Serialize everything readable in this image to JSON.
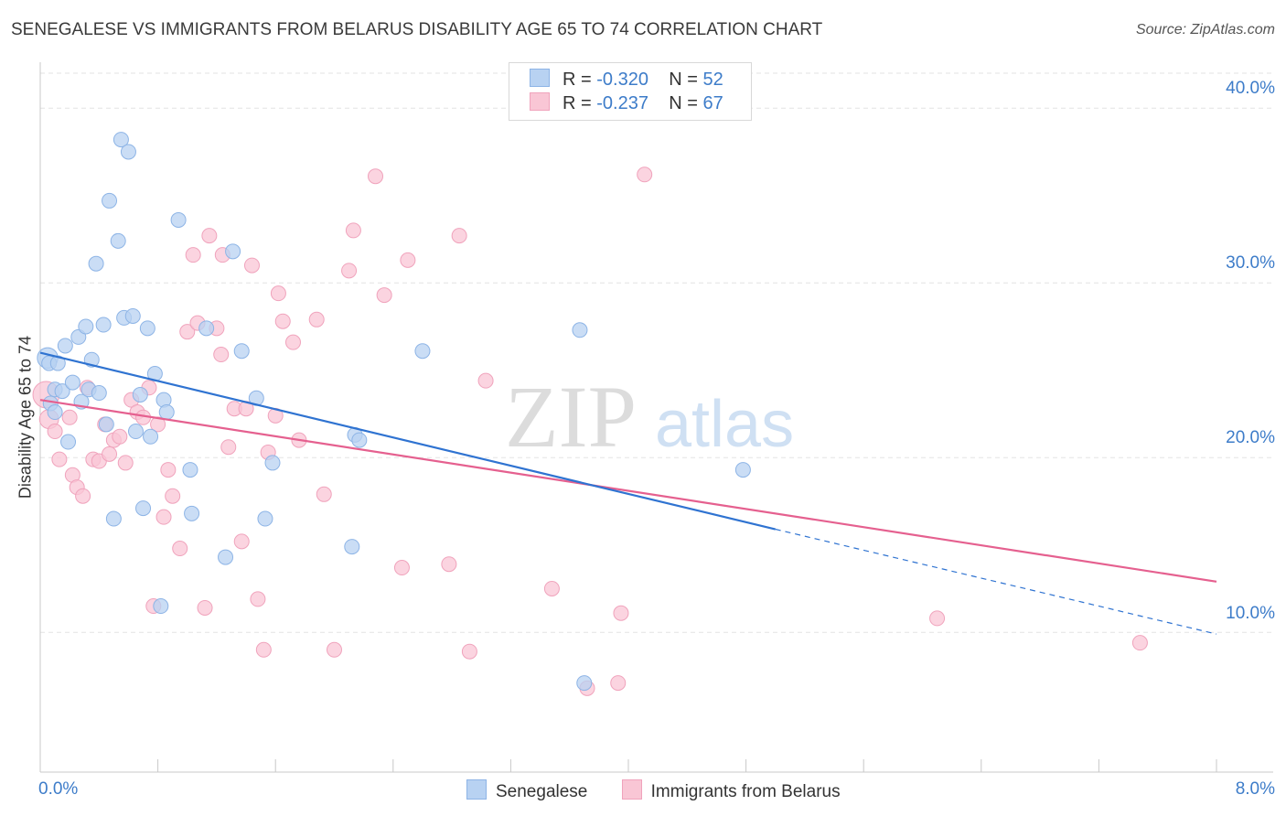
{
  "title": "SENEGALESE VS IMMIGRANTS FROM BELARUS DISABILITY AGE 65 TO 74 CORRELATION CHART",
  "source": "Source: ZipAtlas.com",
  "watermark": {
    "zip": "ZIP",
    "atlas": "atlas"
  },
  "colors": {
    "blue_fill": "#b8d2f2",
    "blue_stroke": "#8db4e6",
    "blue_line": "#2f73d1",
    "pink_fill": "#f9c6d5",
    "pink_stroke": "#f0a3bc",
    "pink_line": "#e5608f",
    "tick_text": "#3d7cc9",
    "grid": "#e3e3e3"
  },
  "stats": [
    {
      "r_label": "R =",
      "r_value": "-0.320",
      "n_label": "N =",
      "n_value": "52"
    },
    {
      "r_label": "R =",
      "r_value": "-0.237",
      "n_label": "N =",
      "n_value": "67"
    }
  ],
  "legend": [
    {
      "label": "Senegalese"
    },
    {
      "label": "Immigrants from Belarus"
    }
  ],
  "chart_data": {
    "type": "scatter",
    "title": "SENEGALESE VS IMMIGRANTS FROM BELARUS DISABILITY AGE 65 TO 74 CORRELATION CHART",
    "xlabel": "",
    "ylabel": "Disability Age 65 to 74",
    "xlim": [
      0,
      8
    ],
    "ylim": [
      2,
      42
    ],
    "x_tick_labels": [
      "0.0%",
      "8.0%"
    ],
    "y_ticks": [
      10,
      20,
      30,
      40
    ],
    "y_tick_labels": [
      "10.0%",
      "20.0%",
      "30.0%",
      "40.0%"
    ],
    "grid": true,
    "series": [
      {
        "name": "Senegalese",
        "color": "blue",
        "trend": {
          "x0": 0.0,
          "y0": 26.0,
          "x1": 5.0,
          "y1": 15.9,
          "dashed_to_x": 8.0,
          "dashed_to_y": 9.9
        },
        "points": [
          [
            0.05,
            25.7,
            1.4
          ],
          [
            0.06,
            25.4,
            1.0
          ],
          [
            0.07,
            23.1,
            1.0
          ],
          [
            0.1,
            22.6,
            1.0
          ],
          [
            0.1,
            23.9,
            1.0
          ],
          [
            0.12,
            25.4,
            1.0
          ],
          [
            0.15,
            23.8,
            1.0
          ],
          [
            0.17,
            26.4,
            1.0
          ],
          [
            0.19,
            20.9,
            1.0
          ],
          [
            0.22,
            24.3,
            1.0
          ],
          [
            0.26,
            26.9,
            1.0
          ],
          [
            0.28,
            23.2,
            1.0
          ],
          [
            0.31,
            27.5,
            1.0
          ],
          [
            0.33,
            23.9,
            1.0
          ],
          [
            0.35,
            25.6,
            1.0
          ],
          [
            0.38,
            31.1,
            1.0
          ],
          [
            0.4,
            23.7,
            1.0
          ],
          [
            0.43,
            27.6,
            1.0
          ],
          [
            0.45,
            21.9,
            1.0
          ],
          [
            0.47,
            34.7,
            1.0
          ],
          [
            0.5,
            16.5,
            1.0
          ],
          [
            0.53,
            32.4,
            1.0
          ],
          [
            0.55,
            38.2,
            1.0
          ],
          [
            0.57,
            28.0,
            1.0
          ],
          [
            0.6,
            37.5,
            1.0
          ],
          [
            0.63,
            28.1,
            1.0
          ],
          [
            0.65,
            21.5,
            1.0
          ],
          [
            0.68,
            23.6,
            1.0
          ],
          [
            0.7,
            17.1,
            1.0
          ],
          [
            0.73,
            27.4,
            1.0
          ],
          [
            0.75,
            21.2,
            1.0
          ],
          [
            0.78,
            24.8,
            1.0
          ],
          [
            0.82,
            11.5,
            1.0
          ],
          [
            0.84,
            23.3,
            1.0
          ],
          [
            0.86,
            22.6,
            1.0
          ],
          [
            0.94,
            33.6,
            1.0
          ],
          [
            1.02,
            19.3,
            1.0
          ],
          [
            1.03,
            16.8,
            1.0
          ],
          [
            1.13,
            27.4,
            1.0
          ],
          [
            1.26,
            14.3,
            1.0
          ],
          [
            1.31,
            31.8,
            1.0
          ],
          [
            1.37,
            26.1,
            1.0
          ],
          [
            1.47,
            23.4,
            1.0
          ],
          [
            1.53,
            16.5,
            1.0
          ],
          [
            1.58,
            19.7,
            1.0
          ],
          [
            2.12,
            14.9,
            1.0
          ],
          [
            2.14,
            21.3,
            1.0
          ],
          [
            2.17,
            21.0,
            1.0
          ],
          [
            2.6,
            26.1,
            1.0
          ],
          [
            3.7,
            7.1,
            1.0
          ],
          [
            3.67,
            27.3,
            1.0
          ],
          [
            4.78,
            19.3,
            1.0
          ]
        ]
      },
      {
        "name": "Immigrants from Belarus",
        "color": "pink",
        "trend": {
          "x0": 0.0,
          "y0": 23.3,
          "x1": 8.0,
          "y1": 12.9
        },
        "points": [
          [
            0.04,
            23.6,
            1.8
          ],
          [
            0.06,
            22.2,
            1.3
          ],
          [
            0.1,
            21.5,
            1.0
          ],
          [
            0.13,
            19.9,
            1.0
          ],
          [
            0.2,
            22.3,
            1.0
          ],
          [
            0.22,
            19.0,
            1.0
          ],
          [
            0.25,
            18.3,
            1.0
          ],
          [
            0.29,
            17.8,
            1.0
          ],
          [
            0.32,
            24.0,
            1.0
          ],
          [
            0.36,
            19.9,
            1.0
          ],
          [
            0.4,
            19.8,
            1.0
          ],
          [
            0.44,
            21.9,
            1.0
          ],
          [
            0.47,
            20.2,
            1.0
          ],
          [
            0.5,
            21.0,
            1.0
          ],
          [
            0.54,
            21.2,
            1.0
          ],
          [
            0.58,
            19.7,
            1.0
          ],
          [
            0.62,
            23.3,
            1.0
          ],
          [
            0.66,
            22.6,
            1.0
          ],
          [
            0.7,
            22.3,
            1.0
          ],
          [
            0.74,
            24.0,
            1.0
          ],
          [
            0.77,
            11.5,
            1.0
          ],
          [
            0.8,
            21.9,
            1.0
          ],
          [
            0.84,
            16.6,
            1.0
          ],
          [
            0.87,
            19.3,
            1.0
          ],
          [
            0.9,
            17.8,
            1.0
          ],
          [
            0.95,
            14.8,
            1.0
          ],
          [
            1.0,
            27.2,
            1.0
          ],
          [
            1.04,
            31.6,
            1.0
          ],
          [
            1.07,
            27.7,
            1.0
          ],
          [
            1.12,
            11.4,
            1.0
          ],
          [
            1.15,
            32.7,
            1.0
          ],
          [
            1.2,
            27.4,
            1.0
          ],
          [
            1.23,
            25.9,
            1.0
          ],
          [
            1.24,
            31.6,
            1.0
          ],
          [
            1.28,
            20.6,
            1.0
          ],
          [
            1.32,
            22.8,
            1.0
          ],
          [
            1.37,
            15.2,
            1.0
          ],
          [
            1.4,
            22.8,
            1.0
          ],
          [
            1.44,
            31.0,
            1.0
          ],
          [
            1.48,
            11.9,
            1.0
          ],
          [
            1.52,
            9.0,
            1.0
          ],
          [
            1.55,
            20.3,
            1.0
          ],
          [
            1.6,
            22.4,
            1.0
          ],
          [
            1.62,
            29.4,
            1.0
          ],
          [
            1.65,
            27.8,
            1.0
          ],
          [
            1.72,
            26.6,
            1.0
          ],
          [
            1.76,
            21.0,
            1.0
          ],
          [
            1.88,
            27.9,
            1.0
          ],
          [
            1.93,
            17.9,
            1.0
          ],
          [
            2.0,
            9.0,
            1.0
          ],
          [
            2.1,
            30.7,
            1.0
          ],
          [
            2.13,
            33.0,
            1.0
          ],
          [
            2.34,
            29.3,
            1.0
          ],
          [
            2.28,
            36.1,
            1.0
          ],
          [
            2.46,
            13.7,
            1.0
          ],
          [
            2.5,
            31.3,
            1.0
          ],
          [
            2.78,
            13.9,
            1.0
          ],
          [
            2.85,
            32.7,
            1.0
          ],
          [
            2.92,
            8.9,
            1.0
          ],
          [
            3.03,
            24.4,
            1.0
          ],
          [
            3.48,
            12.5,
            1.0
          ],
          [
            3.72,
            6.8,
            1.0
          ],
          [
            3.93,
            7.1,
            1.0
          ],
          [
            3.95,
            11.1,
            1.0
          ],
          [
            4.11,
            36.2,
            1.0
          ],
          [
            6.1,
            10.8,
            1.0
          ],
          [
            7.48,
            9.4,
            1.0
          ]
        ]
      }
    ]
  }
}
